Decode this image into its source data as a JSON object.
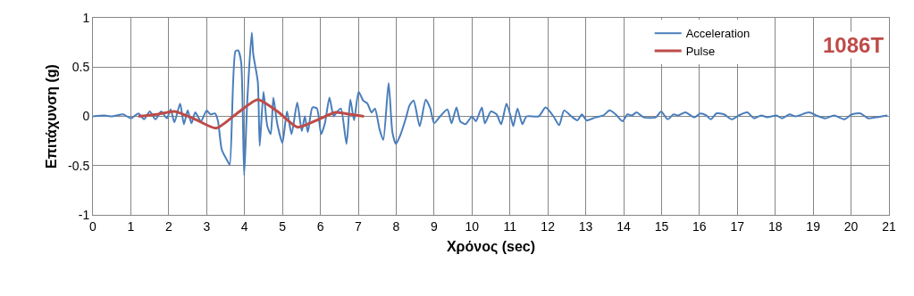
{
  "chart_data": {
    "type": "line",
    "xlabel": "Χρόνος (sec)",
    "ylabel": "Επιτάχυνση (g)",
    "annotations": [
      "1086T"
    ],
    "xlim": [
      0,
      21
    ],
    "xticks": [
      0,
      1,
      2,
      3,
      4,
      5,
      6,
      7,
      8,
      9,
      10,
      11,
      12,
      13,
      14,
      15,
      16,
      17,
      18,
      19,
      20,
      21
    ],
    "ylim": [
      -1,
      1
    ],
    "yticks": [
      -1,
      -0.5,
      0,
      0.5,
      1
    ],
    "grid": true,
    "legend": "top right",
    "marker": "none",
    "line_style": "solid",
    "series": [
      {
        "name": "Acceleration",
        "color": "#4a7ebb",
        "x": [
          0,
          0.3,
          0.5,
          0.8,
          1.0,
          1.2,
          1.35,
          1.5,
          1.65,
          1.8,
          1.95,
          2.05,
          2.15,
          2.3,
          2.4,
          2.5,
          2.6,
          2.7,
          2.85,
          3.0,
          3.1,
          3.22,
          3.3,
          3.4,
          3.56,
          3.61,
          3.76,
          3.83,
          3.91,
          3.99,
          4.07,
          4.19,
          4.23,
          4.35,
          4.4,
          4.5,
          4.6,
          4.69,
          4.76,
          4.86,
          5.0,
          5.12,
          5.24,
          5.39,
          5.51,
          5.59,
          5.67,
          5.79,
          5.91,
          6.02,
          6.12,
          6.24,
          6.35,
          6.43,
          6.54,
          6.69,
          6.79,
          6.89,
          7.01,
          7.13,
          7.24,
          7.35,
          7.44,
          7.56,
          7.66,
          7.8,
          7.9,
          7.99,
          8.11,
          8.27,
          8.35,
          8.46,
          8.62,
          8.78,
          8.9,
          9.0,
          9.16,
          9.35,
          9.46,
          9.59,
          9.69,
          9.83,
          10.0,
          10.1,
          10.26,
          10.34,
          10.5,
          10.65,
          10.77,
          10.91,
          11.02,
          11.09,
          11.2,
          11.33,
          11.44,
          11.76,
          11.94,
          12.15,
          12.3,
          12.43,
          12.62,
          12.78,
          12.9,
          13.02,
          13.26,
          13.47,
          13.63,
          13.79,
          13.97,
          14.1,
          14.22,
          14.34,
          14.53,
          14.85,
          14.99,
          15.16,
          15.32,
          15.44,
          15.63,
          15.87,
          16.02,
          16.18,
          16.3,
          16.45,
          16.65,
          16.85,
          17.04,
          17.26,
          17.44,
          17.63,
          17.79,
          18.03,
          18.18,
          18.38,
          18.53,
          18.89,
          19.08,
          19.32,
          19.55,
          19.83,
          20.02,
          20.25,
          20.45,
          20.65,
          20.96
        ],
        "values": [
          0,
          0.01,
          0,
          0.02,
          -0.02,
          0.03,
          -0.03,
          0.05,
          -0.03,
          0.05,
          -0.02,
          0.07,
          -0.06,
          0.13,
          -0.08,
          0.06,
          -0.07,
          0.04,
          -0.05,
          0.06,
          0.02,
          0.03,
          -0.05,
          -0.34,
          -0.46,
          -0.49,
          0.66,
          0.67,
          0.55,
          -0.6,
          0.14,
          0.85,
          0.63,
          0.35,
          -0.3,
          0.25,
          -0.1,
          -0.18,
          0.19,
          -0.07,
          -0.27,
          0.05,
          -0.18,
          0.14,
          -0.15,
          0,
          -0.16,
          0.09,
          0.08,
          -0.18,
          -0.07,
          0.19,
          0,
          0.04,
          0.08,
          -0.28,
          0.17,
          -0.04,
          0.25,
          0.16,
          0.13,
          0.04,
          0.08,
          -0.13,
          -0.24,
          0.34,
          -0.16,
          -0.28,
          -0.19,
          0,
          0.11,
          0.16,
          -0.1,
          0.17,
          0.08,
          -0.07,
          0,
          0.07,
          -0.07,
          0.09,
          -0.05,
          -0.08,
          0,
          -0.05,
          0.09,
          -0.07,
          0.05,
          0.02,
          -0.08,
          0.13,
          0,
          -0.1,
          0.08,
          -0.08,
          0,
          0,
          0.09,
          0,
          -0.09,
          0.06,
          0,
          -0.04,
          0.02,
          -0.04,
          -0.01,
          0.01,
          0.06,
          0.02,
          -0.05,
          0.02,
          0.01,
          0.04,
          -0.01,
          -0.01,
          0.05,
          -0.03,
          0.02,
          0.01,
          0.04,
          -0.01,
          0.03,
          0.01,
          -0.03,
          0.03,
          0.02,
          -0.03,
          0.01,
          0.04,
          -0.02,
          0.01,
          -0.01,
          0.01,
          -0.02,
          0.02,
          0,
          0.04,
          0.01,
          -0.02,
          0.01,
          -0.03,
          0.02,
          0.03,
          -0.02,
          -0.01,
          0.01
        ]
      },
      {
        "name": "Pulse",
        "color": "#be4b48",
        "x": [
          1.2,
          1.7,
          2.15,
          2.7,
          3.25,
          3.8,
          4.35,
          4.9,
          5.4,
          5.9,
          6.4,
          6.8,
          7.15
        ],
        "values": [
          0,
          0.02,
          0.05,
          -0.03,
          -0.12,
          0.03,
          0.17,
          0.04,
          -0.11,
          -0.04,
          0.04,
          0.02,
          0
        ]
      }
    ]
  }
}
